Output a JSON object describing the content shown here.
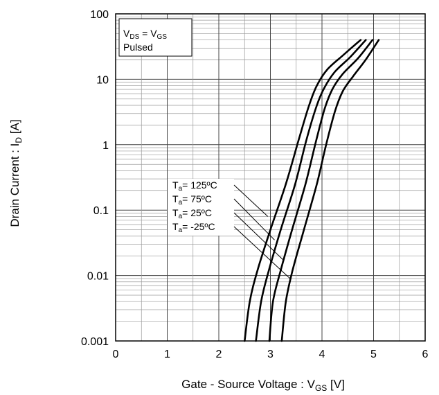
{
  "chart_data": {
    "type": "line",
    "y_scale": "log",
    "xlim": [
      0,
      6
    ],
    "ylim": [
      0.001,
      100
    ],
    "grid": true,
    "x_ticks": [
      "0",
      "1",
      "2",
      "3",
      "4",
      "5",
      "6"
    ],
    "y_ticks": [
      "0.001",
      "0.01",
      "0.1",
      "1",
      "10",
      "100"
    ],
    "xlabel": {
      "main": "Gate - Source Voltage : V",
      "sub": "GS",
      "unit": " [V]"
    },
    "ylabel": {
      "main": "Drain Current : I",
      "sub": "D",
      "unit": " [A]"
    },
    "legend": {
      "line1": {
        "main": "V",
        "sub": "DS",
        "eq": " = V",
        "sub2": "GS"
      },
      "line2": "Pulsed"
    },
    "series": [
      {
        "label": {
          "t": "T",
          "sub": "a",
          "val": "= 125ºC"
        },
        "x": [
          2.5,
          2.6,
          2.75,
          3.0,
          3.3,
          3.55,
          3.75,
          3.9,
          4.1,
          4.4,
          4.75
        ],
        "y": [
          0.001,
          0.004,
          0.012,
          0.05,
          0.25,
          1.2,
          4,
          8,
          14,
          23,
          40
        ]
      },
      {
        "label": {
          "t": "T",
          "sub": "a",
          "val": "=  75ºC"
        },
        "x": [
          2.72,
          2.82,
          2.97,
          3.2,
          3.48,
          3.7,
          3.9,
          4.05,
          4.25,
          4.55,
          4.85
        ],
        "y": [
          0.001,
          0.004,
          0.012,
          0.05,
          0.25,
          1.2,
          4,
          7.5,
          13,
          22,
          40
        ]
      },
      {
        "label": {
          "t": "T",
          "sub": "a",
          "val": "=  25ºC"
        },
        "x": [
          2.98,
          3.05,
          3.2,
          3.42,
          3.68,
          3.88,
          4.05,
          4.2,
          4.4,
          4.7,
          4.98
        ],
        "y": [
          0.001,
          0.004,
          0.012,
          0.05,
          0.25,
          1.1,
          3.5,
          7,
          12,
          21,
          40
        ]
      },
      {
        "label": {
          "t": "T",
          "sub": "a",
          "val": "= -25ºC"
        },
        "x": [
          3.22,
          3.3,
          3.43,
          3.65,
          3.9,
          4.08,
          4.25,
          4.4,
          4.6,
          4.85,
          5.1
        ],
        "y": [
          0.001,
          0.004,
          0.012,
          0.05,
          0.25,
          1.0,
          3.2,
          6.5,
          11,
          20,
          40
        ]
      }
    ],
    "leader_targets": [
      {
        "x": 2.95,
        "y": 0.08
      },
      {
        "x": 3.08,
        "y": 0.035
      },
      {
        "x": 3.26,
        "y": 0.017
      },
      {
        "x": 3.38,
        "y": 0.009
      }
    ]
  }
}
